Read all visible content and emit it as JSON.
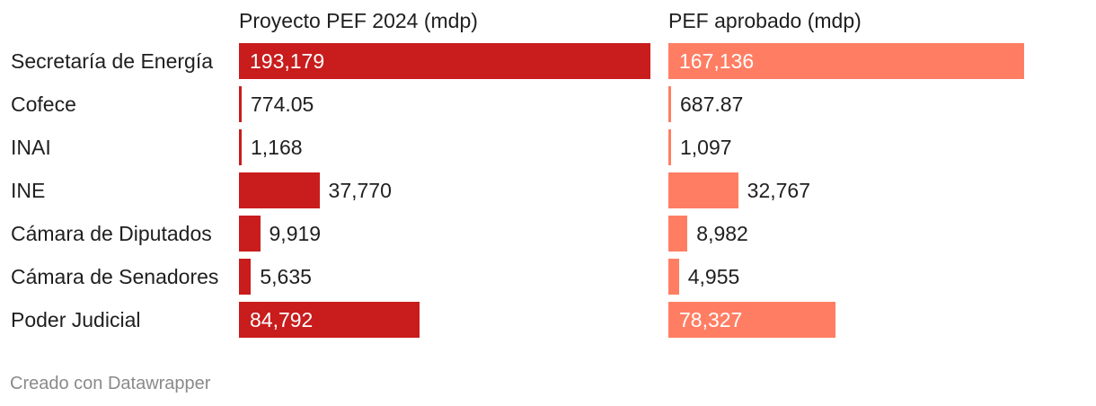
{
  "chart_data": {
    "type": "bar",
    "orientation": "horizontal",
    "categories": [
      "Secretaría de Energía",
      "Cofece",
      "INAI",
      "INE",
      "Cámara de Diputados",
      "Cámara de Senadores",
      "Poder Judicial"
    ],
    "series": [
      {
        "name": "Proyecto PEF 2024 (mdp)",
        "color": "#c91c1c",
        "values": [
          193179,
          774.05,
          1168,
          37770,
          9919,
          5635,
          84792
        ],
        "labels": [
          "193,179",
          "774.05",
          "1,168",
          "37,770",
          "9,919",
          "5,635",
          "84,792"
        ]
      },
      {
        "name": "PEF aprobado (mdp)",
        "color": "#ff7e63",
        "values": [
          167136,
          687.87,
          1097,
          32767,
          8982,
          4955,
          78327
        ],
        "labels": [
          "167,136",
          "687.87",
          "1,097",
          "32,767",
          "8,982",
          "4,955",
          "78,327"
        ]
      }
    ],
    "xlim": [
      0,
      193179
    ]
  },
  "footer": {
    "credit": "Creado con Datawrapper"
  }
}
